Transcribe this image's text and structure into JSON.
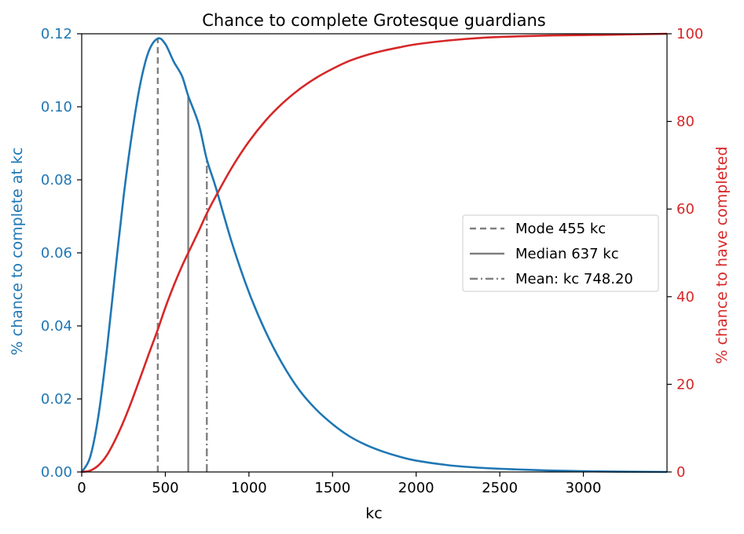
{
  "colors": {
    "left": "#1f77b4",
    "right": "#d62728",
    "refline": "#808080",
    "axis": "#000000"
  },
  "chart_data": {
    "type": "line",
    "title": "Chance to complete Grotesque guardians",
    "xlabel": "kc",
    "ylabel_left": "% chance to complete at kc",
    "ylabel_right": "% chance to have completed",
    "xlim": [
      0,
      3500
    ],
    "ylim_left": [
      0,
      0.12
    ],
    "ylim_right": [
      0,
      100
    ],
    "x_ticks": [
      0,
      500,
      1000,
      1500,
      2000,
      2500,
      3000
    ],
    "x_tick_labels": [
      "0",
      "500",
      "1000",
      "1500",
      "2000",
      "2500",
      "3000"
    ],
    "y_left_ticks": [
      0,
      0.02,
      0.04,
      0.06,
      0.08,
      0.1,
      0.12
    ],
    "y_left_tick_labels": [
      "0.00",
      "0.02",
      "0.04",
      "0.06",
      "0.08",
      "0.10",
      "0.12"
    ],
    "y_right_ticks": [
      0,
      20,
      40,
      60,
      80,
      100
    ],
    "y_right_tick_labels": [
      "0",
      "20",
      "40",
      "60",
      "80",
      "100"
    ],
    "grid": false,
    "legend_position": "center-right",
    "series": [
      {
        "axis": "left",
        "color": "#1f77b4",
        "x": [
          0,
          50,
          100,
          150,
          200,
          250,
          300,
          350,
          400,
          455,
          500,
          550,
          600,
          637,
          700,
          748,
          800,
          900,
          1000,
          1100,
          1200,
          1300,
          1400,
          1500,
          1600,
          1700,
          1800,
          1900,
          2000,
          2200,
          2400,
          2600,
          2800,
          3000,
          3200,
          3500
        ],
        "y": [
          0,
          0.004,
          0.0154,
          0.0333,
          0.0546,
          0.0752,
          0.0924,
          0.1062,
          0.1151,
          0.1187,
          0.1172,
          0.1124,
          0.1084,
          0.103,
          0.0952,
          0.0856,
          0.0782,
          0.0625,
          0.0492,
          0.0384,
          0.0296,
          0.0225,
          0.0172,
          0.0131,
          0.0098,
          0.0074,
          0.0056,
          0.0042,
          0.0031,
          0.0018,
          0.0011,
          0.0007,
          0.0004,
          0.0002,
          0.0001,
          0.0
        ]
      },
      {
        "axis": "right",
        "color": "#d62728",
        "x": [
          0,
          50,
          100,
          150,
          200,
          250,
          300,
          350,
          400,
          455,
          500,
          550,
          600,
          637,
          700,
          748,
          800,
          900,
          1000,
          1100,
          1200,
          1300,
          1400,
          1500,
          1600,
          1700,
          1800,
          1900,
          2000,
          2200,
          2400,
          2600,
          2800,
          3000,
          3200,
          3500
        ],
        "y": [
          0,
          0.3,
          1.5,
          3.8,
          7.3,
          11.5,
          16.3,
          21.5,
          26.8,
          32.5,
          37.5,
          42.5,
          47.0,
          50.0,
          55.0,
          59.0,
          62.8,
          69.6,
          75.4,
          80.2,
          84.1,
          87.3,
          89.9,
          92.0,
          93.8,
          95.1,
          96.1,
          96.9,
          97.6,
          98.5,
          99.1,
          99.4,
          99.6,
          99.7,
          99.8,
          100.0
        ]
      }
    ],
    "reference_lines": [
      {
        "x": 455,
        "top": 0.1187,
        "style": "dashed",
        "label": "Mode 455 kc"
      },
      {
        "x": 637,
        "top": 0.103,
        "style": "solid",
        "label": "Median 637 kc"
      },
      {
        "x": 748.2,
        "top": 0.0856,
        "style": "dashdot",
        "label": "Mean: kc 748.20"
      }
    ]
  }
}
